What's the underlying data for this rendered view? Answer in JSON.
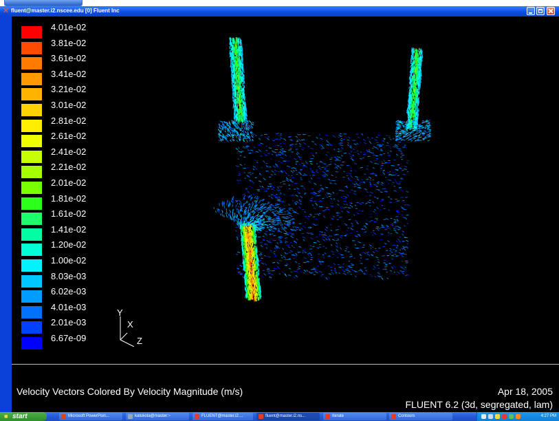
{
  "window": {
    "title": "fluent@master.i2.nscee.edu [0] Fluent Inc"
  },
  "legend": {
    "labels": [
      "4.01e-02",
      "3.81e-02",
      "3.61e-02",
      "3.41e-02",
      "3.21e-02",
      "3.01e-02",
      "2.81e-02",
      "2.61e-02",
      "2.41e-02",
      "2.21e-02",
      "2.01e-02",
      "1.81e-02",
      "1.61e-02",
      "1.41e-02",
      "1.20e-02",
      "1.00e-02",
      "8.03e-03",
      "6.02e-03",
      "4.01e-03",
      "2.01e-03",
      "6.67e-09"
    ],
    "colors": [
      "#ff0000",
      "#ff4a00",
      "#ff7b00",
      "#ff9b00",
      "#ffb400",
      "#ffd200",
      "#ffec00",
      "#f0ff00",
      "#c8ff00",
      "#a6ff00",
      "#7aff00",
      "#2aff1a",
      "#1aff6b",
      "#00ffa4",
      "#00ffd4",
      "#00f4ff",
      "#00c8ff",
      "#009dff",
      "#0070ff",
      "#0040ff",
      "#0000ff"
    ]
  },
  "axes": {
    "y": "Y",
    "x": "X",
    "z": "Z"
  },
  "caption": {
    "title": "Velocity Vectors Colored By Velocity Magnitude (m/s)",
    "date": "Apr 18, 2005",
    "solver": "FLUENT 6.2 (3d, segregated, lam)"
  },
  "taskbar": {
    "start_label": "start",
    "tasks": [
      {
        "label": "Microsoft PowerPoin...",
        "icon_color": "#d24726",
        "active": false
      },
      {
        "label": "katukota@master:~",
        "icon_color": "#9aa7b8",
        "active": false
      },
      {
        "label": "FLUENT@master.i2....",
        "icon_color": "#e33b2e",
        "active": false
      },
      {
        "label": "fluent@master.i2.ns...",
        "icon_color": "#e33b2e",
        "active": true
      },
      {
        "label": "Iterate",
        "icon_color": "#e33b2e",
        "active": false
      },
      {
        "label": "Contours",
        "icon_color": "#e33b2e",
        "active": false
      }
    ],
    "clock": "4:27 PM"
  }
}
